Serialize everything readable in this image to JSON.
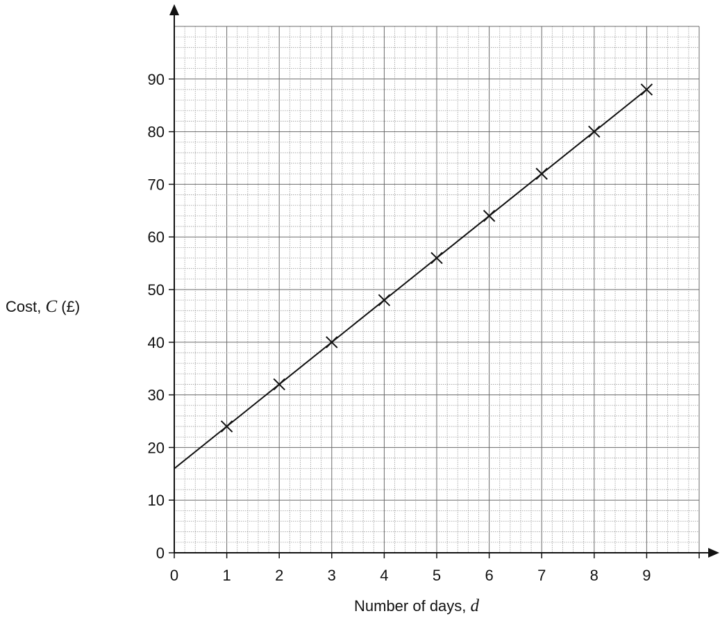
{
  "chart_data": {
    "type": "scatter",
    "x_label": {
      "prefix": "Number of days, ",
      "variable": "d",
      "suffix": ""
    },
    "y_label": {
      "prefix": "Cost, ",
      "variable": "C",
      "suffix": " (£)"
    },
    "x_ticks": [
      "0",
      "1",
      "2",
      "3",
      "4",
      "5",
      "6",
      "7",
      "8",
      "9"
    ],
    "y_ticks": [
      "0",
      "10",
      "20",
      "30",
      "40",
      "50",
      "60",
      "70",
      "80",
      "90"
    ],
    "xlim": [
      0,
      10
    ],
    "ylim": [
      0,
      100
    ],
    "grid": true,
    "points": [
      {
        "x": 1,
        "y": 24
      },
      {
        "x": 2,
        "y": 32
      },
      {
        "x": 3,
        "y": 40
      },
      {
        "x": 4,
        "y": 48
      },
      {
        "x": 5,
        "y": 56
      },
      {
        "x": 6,
        "y": 64
      },
      {
        "x": 7,
        "y": 72
      },
      {
        "x": 8,
        "y": 80
      },
      {
        "x": 9,
        "y": 88
      }
    ],
    "line": {
      "x": [
        0,
        9
      ],
      "y": [
        16,
        88
      ]
    },
    "marker": "x",
    "colors": {
      "ink": "#111111",
      "grid_minor": "#9a9a9a",
      "grid_major": "#6a6a6a"
    }
  }
}
